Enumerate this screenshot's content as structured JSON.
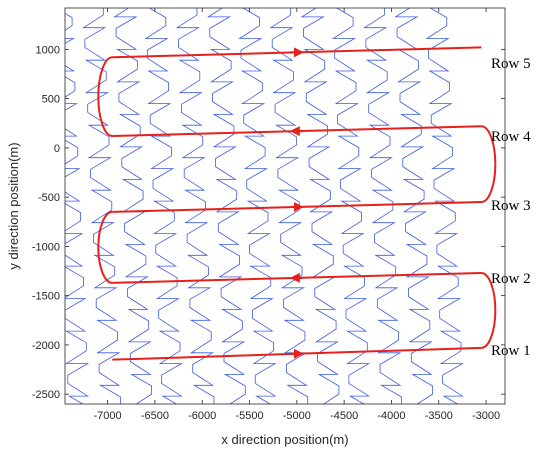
{
  "chart_data": {
    "type": "line",
    "title": "",
    "xlabel": "x direction position(m)",
    "ylabel": "y direction position(m)",
    "xlim": [
      -7450,
      -2800
    ],
    "ylim": [
      -2600,
      1420
    ],
    "xticks": [
      -7000,
      -6500,
      -6000,
      -5500,
      -5000,
      -4500,
      -4000,
      -3500,
      -3000
    ],
    "yticks": [
      -2500,
      -2000,
      -1500,
      -1000,
      -500,
      0,
      500,
      1000
    ],
    "grid": false,
    "colors": {
      "path": "#3b5bdb",
      "route": "#e8201a",
      "axis": "#262626"
    },
    "row_labels": [
      "Row 1",
      "Row 2",
      "Row 3",
      "Row 4",
      "Row 5"
    ],
    "route": {
      "name": "",
      "rows": [
        {
          "label": "Row 1",
          "x_start": -6950,
          "x_end": -3050,
          "y_left": -2150,
          "y_right": -2030,
          "direction": "east"
        },
        {
          "label": "Row 2",
          "x_start": -6950,
          "x_end": -3050,
          "y_left": -1370,
          "y_right": -1270,
          "direction": "west"
        },
        {
          "label": "Row 3",
          "x_start": -6950,
          "x_end": -3050,
          "y_left": -650,
          "y_right": -550,
          "direction": "east"
        },
        {
          "label": "Row 4",
          "x_start": -6950,
          "x_end": -3050,
          "y_left": 120,
          "y_right": 220,
          "direction": "west"
        },
        {
          "label": "Row 5",
          "x_start": -6950,
          "x_end": -3050,
          "y_left": 920,
          "y_right": 1020,
          "direction": "east"
        }
      ]
    },
    "zigzag_path": {
      "name": "",
      "columns": 13,
      "x_first": -7300,
      "x_spacing": 330,
      "rise_per_column": 700,
      "x_shift_per_column": -90
    }
  }
}
